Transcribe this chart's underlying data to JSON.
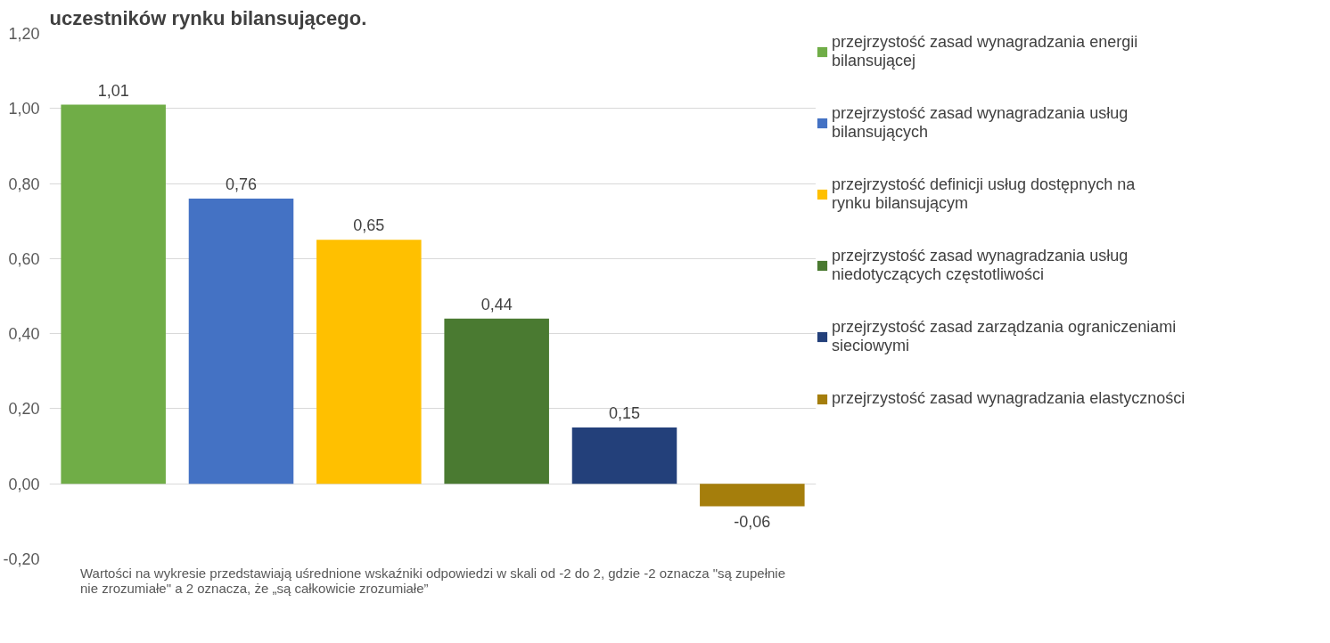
{
  "chart_data": {
    "type": "bar",
    "title": "uczestników rynku bilansującego.",
    "categories": [
      null
    ],
    "series": [
      {
        "name": "przejrzystość zasad wynagradzania energii bilansującej",
        "color": "#70ad47",
        "values": [
          1.01
        ],
        "value_labels": [
          "1,01"
        ]
      },
      {
        "name": "przejrzystość zasad wynagradzania usług bilansujących",
        "color": "#4472c4",
        "values": [
          0.76
        ],
        "value_labels": [
          "0,76"
        ]
      },
      {
        "name": "przejrzystość definicji usług dostępnych na rynku bilansującym",
        "color": "#ffc000",
        "values": [
          0.65
        ],
        "value_labels": [
          "0,65"
        ]
      },
      {
        "name": "przejrzystość zasad wynagradzania usług niedotyczących częstotliwości",
        "color": "#4a7a31",
        "values": [
          0.44
        ],
        "value_labels": [
          "0,44"
        ]
      },
      {
        "name": "przejrzystość zasad zarządzania ograniczeniami sieciowymi",
        "color": "#23407a",
        "values": [
          0.15
        ],
        "value_labels": [
          "0,15"
        ]
      },
      {
        "name": "przejrzystość zasad wynagradzania elastyczności",
        "color": "#a57e0c",
        "values": [
          -0.06
        ],
        "value_labels": [
          "-0,06"
        ]
      }
    ],
    "ylim": [
      -0.2,
      1.2
    ],
    "yticks": [
      {
        "value": -0.2,
        "label": "-0,20"
      },
      {
        "value": 0,
        "label": "0,00"
      },
      {
        "value": 0.2,
        "label": "0,20"
      },
      {
        "value": 0.4,
        "label": "0,40"
      },
      {
        "value": 0.6,
        "label": "0,60"
      },
      {
        "value": 0.8,
        "label": "0,80"
      },
      {
        "value": 1.0,
        "label": "1,00"
      },
      {
        "value": 1.2,
        "label": "1,20"
      }
    ],
    "grid": "y",
    "legend": "right",
    "tick_labels": "y",
    "annotations": [
      "Wartości na wykresie przedstawiają uśrednione wskaźniki odpowiedzi w skali od -2 do 2, gdzie -2 oznacza \"są zupełnie nie zrozumiałe\" a 2 oznacza, że „są całkowicie zrozumiałe”"
    ]
  }
}
